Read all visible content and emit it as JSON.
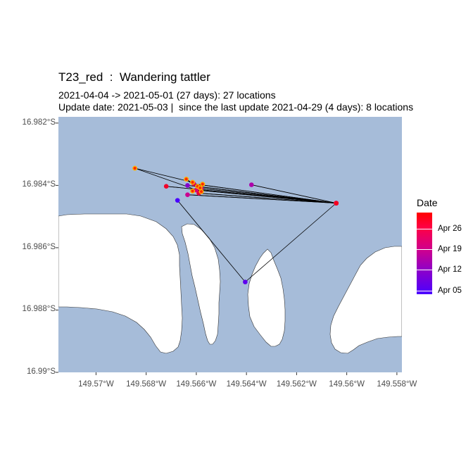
{
  "title": "T23_red  :  Wandering tattler",
  "subtitle_line1": "2021-04-04 -> 2021-05-01 (27 days): 27 locations",
  "subtitle_line2": "Update date: 2021-05-03 |  since the last update 2021-04-29 (4 days): 8 locations",
  "colors": {
    "water": "#a6bcd9",
    "land": "#ffffff",
    "track_line": "#000000",
    "date_start": "#4a00ff",
    "date_end": "#ff0000"
  },
  "legend": {
    "title": "Date",
    "labels": [
      "Apr 26",
      "Apr 19",
      "Apr 12",
      "Apr 05"
    ]
  },
  "chart_data": {
    "type": "map",
    "xlim": [
      -149.5715,
      -149.5578
    ],
    "ylim": [
      -16.99,
      -16.9818
    ],
    "x_ticks": [
      {
        "value": -149.57,
        "label": "149.57°W"
      },
      {
        "value": -149.568,
        "label": "149.568°W"
      },
      {
        "value": -149.566,
        "label": "149.566°W"
      },
      {
        "value": -149.564,
        "label": "149.564°W"
      },
      {
        "value": -149.562,
        "label": "149.562°W"
      },
      {
        "value": -149.56,
        "label": "149.56°W"
      },
      {
        "value": -149.558,
        "label": "149.558°W"
      }
    ],
    "y_ticks": [
      {
        "value": -16.982,
        "label": "16.982°S"
      },
      {
        "value": -16.984,
        "label": "16.984°S"
      },
      {
        "value": -16.986,
        "label": "16.986°S"
      },
      {
        "value": -16.988,
        "label": "16.988°S"
      },
      {
        "value": -16.99,
        "label": "16.99°S"
      }
    ],
    "legend_range": {
      "min": "2021-04-04",
      "max": "2021-05-01"
    },
    "legend_tick_dates": [
      "2021-04-26",
      "2021-04-19",
      "2021-04-12",
      "2021-04-05"
    ],
    "track": [
      {
        "lon": -149.56675,
        "lat": -16.98448,
        "date": "2021-04-04"
      },
      {
        "lon": -149.56405,
        "lat": -16.9871,
        "date": "2021-04-06"
      },
      {
        "lon": -149.56042,
        "lat": -16.98457,
        "date": "2021-04-08"
      },
      {
        "lon": -149.56635,
        "lat": -16.984,
        "date": "2021-04-10"
      },
      {
        "lon": -149.56042,
        "lat": -16.98457,
        "date": "2021-04-12"
      },
      {
        "lon": -149.5638,
        "lat": -16.98398,
        "date": "2021-04-14"
      },
      {
        "lon": -149.56042,
        "lat": -16.98457,
        "date": "2021-04-16"
      },
      {
        "lon": -149.56635,
        "lat": -16.9843,
        "date": "2021-04-17"
      },
      {
        "lon": -149.56042,
        "lat": -16.98457,
        "date": "2021-04-18"
      },
      {
        "lon": -149.566,
        "lat": -16.98415,
        "date": "2021-04-19"
      },
      {
        "lon": -149.56042,
        "lat": -16.98457,
        "date": "2021-04-20"
      },
      {
        "lon": -149.5658,
        "lat": -16.9841,
        "date": "2021-04-21"
      },
      {
        "lon": -149.56042,
        "lat": -16.98457,
        "date": "2021-04-22"
      },
      {
        "lon": -149.5661,
        "lat": -16.98395,
        "date": "2021-04-23"
      },
      {
        "lon": -149.56042,
        "lat": -16.98457,
        "date": "2021-04-24"
      },
      {
        "lon": -149.5659,
        "lat": -16.98425,
        "date": "2021-04-25"
      },
      {
        "lon": -149.56042,
        "lat": -16.98457,
        "date": "2021-04-26"
      },
      {
        "lon": -149.5672,
        "lat": -16.98403,
        "date": "2021-04-27"
      },
      {
        "lon": -149.56042,
        "lat": -16.98457,
        "date": "2021-04-28"
      },
      {
        "lon": -149.56595,
        "lat": -16.98403,
        "date": "2021-04-29"
      },
      {
        "lon": -149.56575,
        "lat": -16.98396,
        "date": "2021-04-29"
      },
      {
        "lon": -149.56615,
        "lat": -16.98418,
        "date": "2021-04-30"
      },
      {
        "lon": -149.56585,
        "lat": -16.98408,
        "date": "2021-04-30"
      },
      {
        "lon": -149.5664,
        "lat": -16.9838,
        "date": "2021-04-30"
      },
      {
        "lon": -149.5658,
        "lat": -16.9842,
        "date": "2021-05-01"
      },
      {
        "lon": -149.56845,
        "lat": -16.98345,
        "date": "2021-05-01"
      },
      {
        "lon": -149.56615,
        "lat": -16.9839,
        "date": "2021-05-01"
      }
    ]
  }
}
